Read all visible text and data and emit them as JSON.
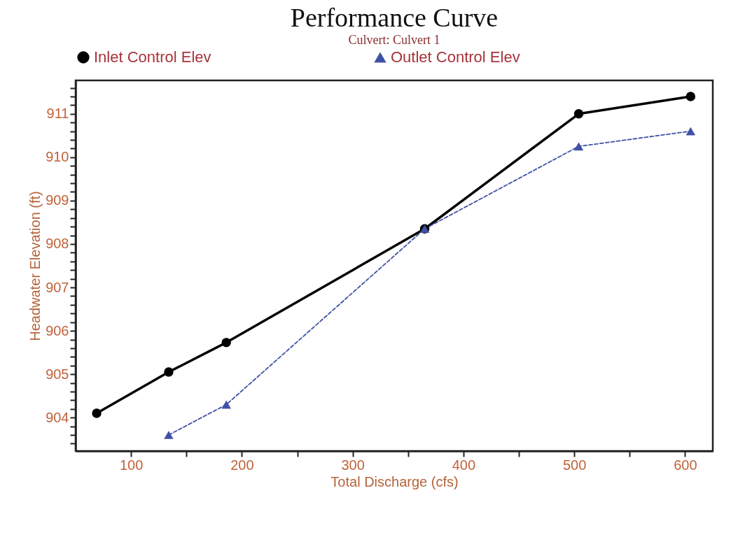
{
  "chart_data": {
    "type": "line",
    "title": "Performance Curve",
    "subtitle": "Culvert: Culvert 1",
    "xlabel": "Total Discharge (cfs)",
    "ylabel": "Headwater Elevation (ft)",
    "xlim": [
      50,
      625
    ],
    "xticks": [
      100,
      {
        "value": 150,
        "label": null
      },
      200,
      {
        "value": 250,
        "label": null
      },
      300,
      {
        "value": 350,
        "label": null
      },
      400,
      {
        "value": 450,
        "label": null
      },
      500,
      {
        "value": 550,
        "label": null
      },
      600
    ],
    "ylim": [
      903.23,
      911.77
    ],
    "yticks": [
      {
        "value": 903.4,
        "label": null
      },
      {
        "value": 903.6,
        "label": null
      },
      {
        "value": 903.8,
        "label": null
      },
      904,
      {
        "value": 904.2,
        "label": null
      },
      {
        "value": 904.4,
        "label": null
      },
      {
        "value": 904.6,
        "label": null
      },
      {
        "value": 904.8,
        "label": null
      },
      905,
      {
        "value": 905.2,
        "label": null
      },
      {
        "value": 905.4,
        "label": null
      },
      {
        "value": 905.6,
        "label": null
      },
      {
        "value": 905.8,
        "label": null
      },
      906,
      {
        "value": 906.2,
        "label": null
      },
      {
        "value": 906.4,
        "label": null
      },
      {
        "value": 906.6,
        "label": null
      },
      {
        "value": 906.8,
        "label": null
      },
      907,
      {
        "value": 907.2,
        "label": null
      },
      {
        "value": 907.4,
        "label": null
      },
      {
        "value": 907.6,
        "label": null
      },
      {
        "value": 907.8,
        "label": null
      },
      908,
      {
        "value": 908.2,
        "label": null
      },
      {
        "value": 908.4,
        "label": null
      },
      {
        "value": 908.6,
        "label": null
      },
      {
        "value": 908.8,
        "label": null
      },
      909,
      {
        "value": 909.2,
        "label": null
      },
      {
        "value": 909.4,
        "label": null
      },
      {
        "value": 909.6,
        "label": null
      },
      {
        "value": 909.8,
        "label": null
      },
      910,
      {
        "value": 910.2,
        "label": null
      },
      {
        "value": 910.4,
        "label": null
      },
      {
        "value": 910.6,
        "label": null
      },
      {
        "value": 910.8,
        "label": null
      },
      911,
      {
        "value": 911.2,
        "label": null
      },
      {
        "value": 911.4,
        "label": null
      },
      {
        "value": 911.6,
        "label": null
      }
    ],
    "grid": false,
    "legend": "top",
    "series": [
      {
        "name": "Inlet Control Elev",
        "color": "#000000",
        "marker": "circle",
        "line_style": "solid",
        "x": [
          69,
          134,
          186,
          365,
          504,
          605
        ],
        "values": [
          904.1,
          905.05,
          905.73,
          908.35,
          911.0,
          911.4
        ]
      },
      {
        "name": "Outlet Control Elev",
        "color": "#3f51a5",
        "marker": "triangle",
        "line_style": "dashed",
        "x": [
          134,
          186,
          365,
          504,
          605
        ],
        "values": [
          903.6,
          904.3,
          908.35,
          910.25,
          910.6
        ]
      }
    ]
  }
}
